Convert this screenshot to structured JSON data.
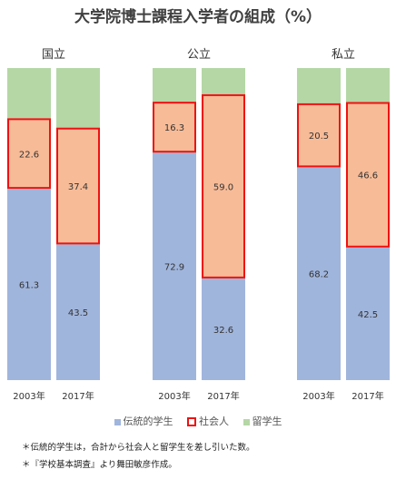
{
  "chart_data": {
    "type": "bar",
    "stacked": true,
    "title": "大学院博士課程入学者の組成（%）",
    "groups": [
      {
        "label": "国立",
        "categories": [
          "2003年",
          "2017年"
        ],
        "series": [
          {
            "name": "伝統的学生",
            "values": [
              61.3,
              43.5
            ]
          },
          {
            "name": "社会人",
            "values": [
              22.6,
              37.4
            ]
          },
          {
            "name": "留学生",
            "values": [
              16.1,
              19.1
            ]
          }
        ]
      },
      {
        "label": "公立",
        "categories": [
          "2003年",
          "2017年"
        ],
        "series": [
          {
            "name": "伝統的学生",
            "values": [
              72.9,
              32.6
            ]
          },
          {
            "name": "社会人",
            "values": [
              16.3,
              59.0
            ]
          },
          {
            "name": "留学生",
            "values": [
              10.8,
              8.4
            ]
          }
        ]
      },
      {
        "label": "私立",
        "categories": [
          "2003年",
          "2017年"
        ],
        "series": [
          {
            "name": "伝統的学生",
            "values": [
              68.2,
              42.5
            ]
          },
          {
            "name": "社会人",
            "values": [
              20.5,
              46.6
            ]
          },
          {
            "name": "留学生",
            "values": [
              11.3,
              10.9
            ]
          }
        ]
      }
    ],
    "data_labels": [
      [
        "61.3",
        "43.5"
      ],
      [
        "72.9",
        "32.6"
      ],
      [
        "68.2",
        "42.5"
      ]
    ],
    "social_labels": [
      [
        "22.6",
        "37.4"
      ],
      [
        "16.3",
        "59.0"
      ],
      [
        "20.5",
        "46.6"
      ]
    ],
    "legend": {
      "position": "bottom",
      "items": [
        "伝統的学生",
        "社会人",
        "留学生"
      ]
    },
    "ylim": [
      0,
      100
    ],
    "grid": false
  },
  "colors": {
    "traditional": "#a0b5dc",
    "social": "#f7bb97",
    "foreign": "#b5d7a6",
    "highlight_border": "#ee1111"
  },
  "notes": [
    "＊伝統的学生は，合計から社会人と留学生を差し引いた数。",
    "＊『学校基本調査』より舞田敏彦作成。"
  ]
}
